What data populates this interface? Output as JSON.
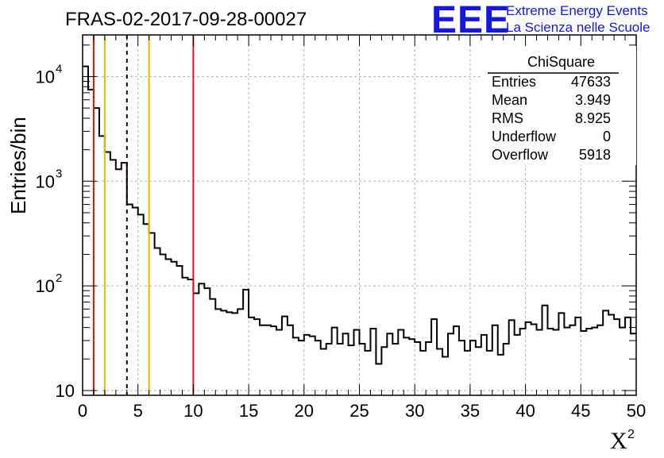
{
  "chart_data": {
    "type": "histogram",
    "title": "FRAS-02-2017-09-28-00027",
    "xlabel": "X",
    "xlabel_superscript": "2",
    "ylabel": "Entries/bin",
    "xlim": [
      0,
      50
    ],
    "ylim": [
      9,
      25000
    ],
    "yscale": "log",
    "grid": true,
    "x_ticks": [
      0,
      5,
      10,
      15,
      20,
      25,
      30,
      35,
      40,
      45,
      50
    ],
    "y_ticks": [
      {
        "value": 10,
        "base": "10",
        "exponent": ""
      },
      {
        "value": 100,
        "base": "10",
        "exponent": "2"
      },
      {
        "value": 1000,
        "base": "10",
        "exponent": "3"
      },
      {
        "value": 10000,
        "base": "10",
        "exponent": "4"
      }
    ],
    "bin_width": 0.5,
    "bin_start": 0,
    "values": [
      12500,
      7500,
      5000,
      2700,
      1900,
      1600,
      1300,
      1500,
      600,
      560,
      480,
      390,
      320,
      230,
      200,
      180,
      170,
      155,
      120,
      115,
      85,
      105,
      95,
      75,
      60,
      58,
      56,
      55,
      60,
      92,
      50,
      48,
      42,
      42,
      41,
      38,
      51,
      42,
      32,
      30,
      34,
      33,
      30,
      25,
      28,
      40,
      28,
      35,
      27,
      38,
      28,
      24,
      39,
      18,
      26,
      35,
      28,
      38,
      32,
      31,
      29,
      24,
      29,
      48,
      25,
      21,
      35,
      41,
      30,
      24,
      30,
      26,
      34,
      24,
      42,
      22,
      28,
      47,
      34,
      39,
      45,
      43,
      38,
      65,
      39,
      38,
      55,
      40,
      42,
      50,
      37,
      39,
      40,
      42,
      58,
      53,
      48,
      40,
      50,
      35
    ],
    "vertical_lines": [
      {
        "x": 1,
        "color": "#dc1414",
        "style": "solid"
      },
      {
        "x": 2,
        "color": "#f0b400",
        "style": "solid"
      },
      {
        "x": 4,
        "color": "#000000",
        "style": "dashed"
      },
      {
        "x": 6,
        "color": "#f0b400",
        "style": "solid"
      },
      {
        "x": 10,
        "color": "#dc1414",
        "style": "solid"
      }
    ],
    "stats_box": {
      "title": "ChiSquare",
      "rows": [
        {
          "label": "Entries",
          "value": "47633"
        },
        {
          "label": "Mean",
          "value": "3.949"
        },
        {
          "label": "RMS",
          "value": "8.925"
        },
        {
          "label": "Underflow",
          "value": "0"
        },
        {
          "label": "Overflow",
          "value": "5918"
        }
      ]
    }
  },
  "logo": {
    "text": "EEE",
    "line1": "Extreme Energy Events",
    "line2": "La Scienza nelle Scuole"
  }
}
